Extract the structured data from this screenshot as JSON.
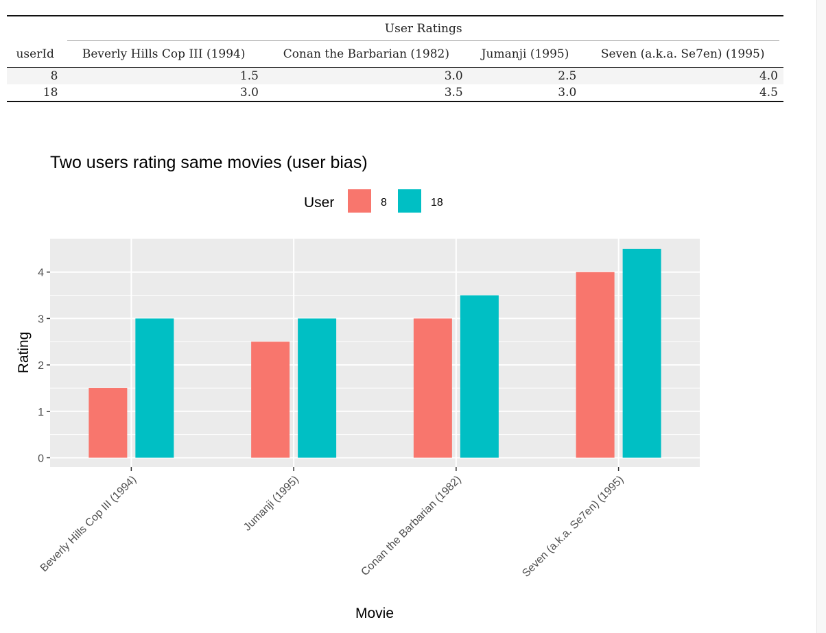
{
  "table": {
    "group_header": "User Ratings",
    "columns": [
      "userId",
      "Beverly Hills Cop III (1994)",
      "Conan the Barbarian (1982)",
      "Jumanji (1995)",
      "Seven (a.k.a. Se7en) (1995)"
    ],
    "rows": [
      [
        "8",
        "1.5",
        "3.0",
        "2.5",
        "4.0"
      ],
      [
        "18",
        "3.0",
        "3.5",
        "3.0",
        "4.5"
      ]
    ]
  },
  "chart_data": {
    "type": "bar",
    "title": "Two users rating same movies (user bias)",
    "xlabel": "Movie",
    "ylabel": "Rating",
    "categories": [
      "Beverly Hills Cop III (1994)",
      "Jumanji (1995)",
      "Conan the Barbarian (1982)",
      "Seven (a.k.a. Se7en) (1995)"
    ],
    "series": [
      {
        "name": "8",
        "color": "#F8766D",
        "values": [
          1.5,
          2.5,
          3.0,
          4.0
        ]
      },
      {
        "name": "18",
        "color": "#00BFC4",
        "values": [
          3.0,
          3.0,
          3.5,
          4.5
        ]
      }
    ],
    "legend_title": "User",
    "legend_position": "top",
    "ylim": [
      -0.2,
      4.72
    ],
    "yticks": [
      0,
      1,
      2,
      3,
      4
    ],
    "grid": true,
    "panel_background": "#EBEBEB"
  }
}
